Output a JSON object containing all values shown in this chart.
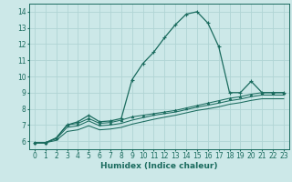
{
  "bg_color": "#cce8e8",
  "grid_color": "#b0d4d4",
  "line_color": "#1a6b5e",
  "xlabel": "Humidex (Indice chaleur)",
  "xlabel_fontsize": 6.5,
  "tick_fontsize": 5.5,
  "xlim": [
    -0.5,
    23.5
  ],
  "ylim": [
    5.5,
    14.5
  ],
  "yticks": [
    6,
    7,
    8,
    9,
    10,
    11,
    12,
    13,
    14
  ],
  "xticks": [
    0,
    1,
    2,
    3,
    4,
    5,
    6,
    7,
    8,
    9,
    10,
    11,
    12,
    13,
    14,
    15,
    16,
    17,
    18,
    19,
    20,
    21,
    22,
    23
  ],
  "series1_x": [
    0,
    1,
    2,
    3,
    4,
    5,
    6,
    7,
    8,
    9,
    10,
    11,
    12,
    13,
    14,
    15,
    16,
    17,
    18,
    19,
    20,
    21,
    22,
    23
  ],
  "series1_y": [
    5.9,
    5.9,
    6.2,
    7.0,
    7.2,
    7.6,
    7.2,
    7.25,
    7.4,
    9.8,
    10.8,
    11.5,
    12.4,
    13.2,
    13.85,
    14.0,
    13.3,
    11.85,
    9.0,
    9.0,
    9.7,
    9.0,
    9.0,
    9.0
  ],
  "series2_x": [
    0,
    1,
    2,
    3,
    4,
    5,
    6,
    7,
    8,
    9,
    10,
    11,
    12,
    13,
    14,
    15,
    16,
    17,
    18,
    19,
    20,
    21,
    22,
    23
  ],
  "series2_y": [
    5.9,
    5.9,
    6.2,
    7.0,
    7.1,
    7.4,
    7.1,
    7.15,
    7.3,
    7.5,
    7.6,
    7.7,
    7.8,
    7.9,
    8.05,
    8.2,
    8.35,
    8.5,
    8.65,
    8.75,
    8.9,
    9.0,
    9.0,
    9.0
  ],
  "series3_x": [
    0,
    1,
    2,
    3,
    4,
    5,
    6,
    7,
    8,
    9,
    10,
    11,
    12,
    13,
    14,
    15,
    16,
    17,
    18,
    19,
    20,
    21,
    22,
    23
  ],
  "series3_y": [
    5.9,
    5.9,
    6.15,
    6.85,
    6.95,
    7.25,
    6.95,
    7.0,
    7.1,
    7.3,
    7.45,
    7.6,
    7.7,
    7.8,
    7.95,
    8.1,
    8.22,
    8.35,
    8.5,
    8.6,
    8.75,
    8.85,
    8.85,
    8.85
  ],
  "series4_x": [
    0,
    1,
    2,
    3,
    4,
    5,
    6,
    7,
    8,
    9,
    10,
    11,
    12,
    13,
    14,
    15,
    16,
    17,
    18,
    19,
    20,
    21,
    22,
    23
  ],
  "series4_y": [
    5.9,
    5.9,
    6.05,
    6.6,
    6.7,
    6.95,
    6.7,
    6.75,
    6.85,
    7.05,
    7.2,
    7.35,
    7.48,
    7.6,
    7.75,
    7.9,
    8.0,
    8.12,
    8.28,
    8.38,
    8.52,
    8.62,
    8.62,
    8.62
  ]
}
